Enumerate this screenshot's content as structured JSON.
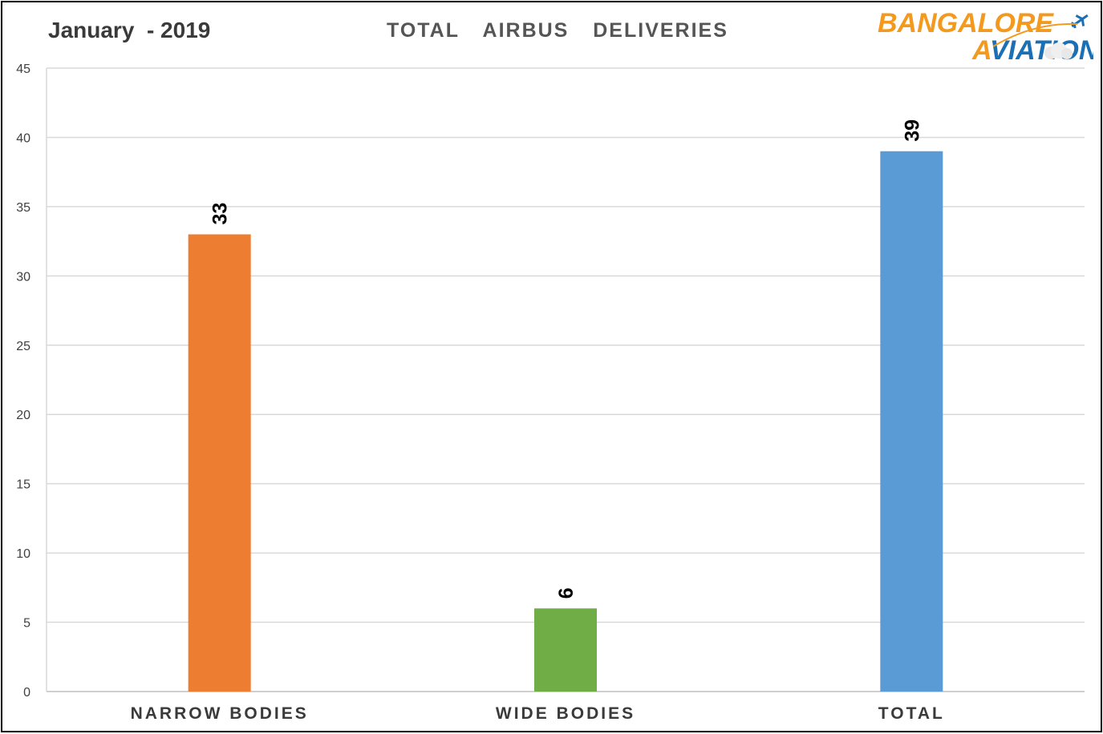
{
  "header": {
    "date_label": "January  - 2019",
    "title": "TOTAL  AIRBUS  DELIVERIES"
  },
  "logo": {
    "line1": "BANGALORE",
    "line2": "VIATION",
    "letter_a": "A",
    "orange": "#F39A1E",
    "blue": "#1B6FB5"
  },
  "chart_data": {
    "type": "bar",
    "title": "TOTAL  AIRBUS  DELIVERIES",
    "categories": [
      "NARROW BODIES",
      "WIDE BODIES",
      "TOTAL"
    ],
    "values": [
      33,
      6,
      39
    ],
    "colors": [
      "#ED7D31",
      "#70AD47",
      "#5B9BD5"
    ],
    "ylim": [
      0,
      45
    ],
    "yticks": [
      0,
      5,
      10,
      15,
      20,
      25,
      30,
      35,
      40,
      45
    ],
    "grid": true,
    "data_labels": true,
    "data_label_rotation": "vertical"
  }
}
